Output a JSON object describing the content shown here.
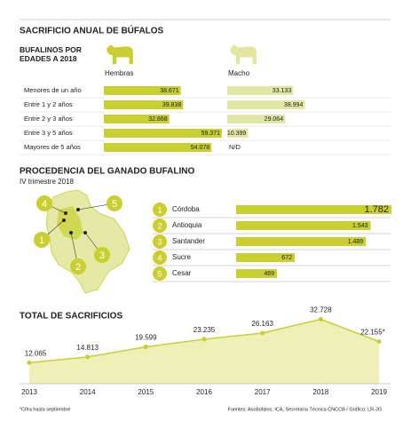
{
  "title": "SACRIFICIO ANUAL DE BÚFALOS",
  "chart_data": [
    {
      "type": "bar",
      "orientation": "horizontal",
      "title": "BUFALINOS POR EDADES A 2018",
      "categories": [
        "Menores de un año",
        "Entre 1 y 2 años",
        "Entre 2 y 3 años",
        "Entre 3 y 5 años",
        "Mayores de 5 años"
      ],
      "series": [
        {
          "name": "Hembras",
          "color": "#c9cf2f",
          "values": [
            38671,
            39838,
            32868,
            59371,
            54078
          ],
          "value_labels": [
            "38.671",
            "39.838",
            "32.868",
            "59.371",
            "54.078"
          ]
        },
        {
          "name": "Macho",
          "color": "#e3e6a0",
          "values": [
            33133,
            38994,
            29064,
            10399,
            null
          ],
          "value_labels": [
            "33.133",
            "38.994",
            "29.064",
            "10.399",
            "N/D"
          ]
        }
      ]
    },
    {
      "type": "bar",
      "orientation": "horizontal",
      "title": "PROCEDENCIA DEL GANADO BUFALINO",
      "subtitle": "IV trimestre 2018",
      "ranks": [
        1,
        2,
        3,
        4,
        5
      ],
      "categories": [
        "Córdoba",
        "Antioquia",
        "Santander",
        "Sucre",
        "Cesar"
      ],
      "values": [
        1782,
        1543,
        1489,
        672,
        469
      ],
      "value_labels": [
        "1.782",
        "1.543",
        "1.489",
        "672",
        "469"
      ],
      "color": "#c9cf2f"
    },
    {
      "type": "area",
      "title": "TOTAL DE SACRIFICIOS",
      "x": [
        2013,
        2014,
        2015,
        2016,
        2017,
        2018,
        2019
      ],
      "values": [
        12065,
        14813,
        19599,
        23235,
        26163,
        32728,
        22155
      ],
      "value_labels": [
        "12.065",
        "14.813",
        "19.599",
        "23.235",
        "26.163",
        "32.728",
        "22.155*"
      ],
      "color": "#c9cf2f",
      "fill": "#eef0b8"
    }
  ],
  "footnote": "*Cifra hasta septiembre",
  "source": "Fuentes: Asobúfalos, ICA, Secretaría Técnica CNCCB / Gráfico: LR-JG"
}
